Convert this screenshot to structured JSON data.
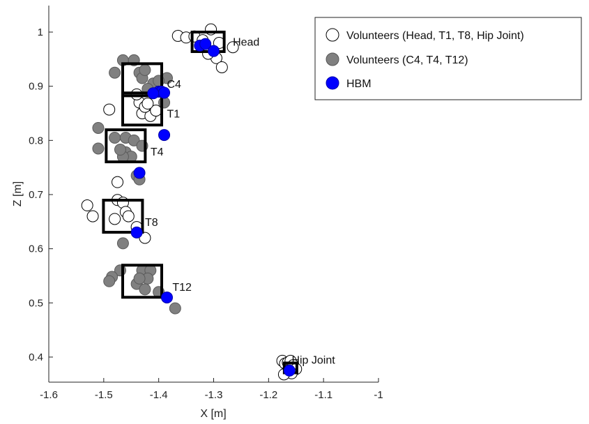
{
  "chart_data": {
    "type": "scatter",
    "title": "",
    "xlabel": "X [m]",
    "ylabel": "Z [m]",
    "xlim": [
      -1.6,
      -1.0
    ],
    "ylim": [
      0.35,
      1.05
    ],
    "xticks": [
      -1.6,
      -1.5,
      -1.4,
      -1.3,
      -1.2,
      -1.1,
      -1
    ],
    "xtick_labels": [
      "-1.6",
      "-1.5",
      "-1.4",
      "-1.3",
      "-1.2",
      "-1.1",
      "-1"
    ],
    "yticks": [
      0.4,
      0.5,
      0.6,
      0.7,
      0.8,
      0.9,
      1
    ],
    "ytick_labels": [
      "0.4",
      "0.5",
      "0.6",
      "0.7",
      "0.8",
      "0.9",
      "1"
    ],
    "grid": false,
    "legend_position": "top-right",
    "series": [
      {
        "name": "Volunteers (Head, T1, T8, Hip Joint)",
        "marker": "open-circle",
        "color": "#ffffff",
        "points": [
          [
            -1.365,
            0.993
          ],
          [
            -1.35,
            0.99
          ],
          [
            -1.335,
            0.992
          ],
          [
            -1.305,
            1.005
          ],
          [
            -1.29,
            0.98
          ],
          [
            -1.265,
            0.972
          ],
          [
            -1.295,
            0.952
          ],
          [
            -1.285,
            0.935
          ],
          [
            -1.32,
            0.985
          ],
          [
            -1.31,
            0.96
          ],
          [
            -1.49,
            0.857
          ],
          [
            -1.435,
            0.87
          ],
          [
            -1.43,
            0.85
          ],
          [
            -1.415,
            0.845
          ],
          [
            -1.405,
            0.855
          ],
          [
            -1.44,
            0.885
          ],
          [
            -1.425,
            0.862
          ],
          [
            -1.42,
            0.868
          ],
          [
            -1.53,
            0.68
          ],
          [
            -1.52,
            0.66
          ],
          [
            -1.48,
            0.655
          ],
          [
            -1.475,
            0.69
          ],
          [
            -1.465,
            0.685
          ],
          [
            -1.46,
            0.668
          ],
          [
            -1.455,
            0.66
          ],
          [
            -1.44,
            0.64
          ],
          [
            -1.425,
            0.62
          ],
          [
            -1.475,
            0.723
          ],
          [
            -1.175,
            0.393
          ],
          [
            -1.17,
            0.388
          ],
          [
            -1.165,
            0.39
          ],
          [
            -1.16,
            0.393
          ],
          [
            -1.155,
            0.385
          ],
          [
            -1.15,
            0.378
          ],
          [
            -1.158,
            0.37
          ],
          [
            -1.165,
            0.375
          ],
          [
            -1.172,
            0.368
          ]
        ]
      },
      {
        "name": "Volunteers (C4, T4, T12)",
        "marker": "filled-circle",
        "color": "#808080",
        "points": [
          [
            -1.465,
            0.948
          ],
          [
            -1.445,
            0.948
          ],
          [
            -1.48,
            0.925
          ],
          [
            -1.435,
            0.925
          ],
          [
            -1.43,
            0.915
          ],
          [
            -1.41,
            0.905
          ],
          [
            -1.42,
            0.895
          ],
          [
            -1.385,
            0.915
          ],
          [
            -1.4,
            0.91
          ],
          [
            -1.39,
            0.87
          ],
          [
            -1.425,
            0.93
          ],
          [
            -1.51,
            0.823
          ],
          [
            -1.48,
            0.805
          ],
          [
            -1.46,
            0.805
          ],
          [
            -1.445,
            0.8
          ],
          [
            -1.43,
            0.79
          ],
          [
            -1.51,
            0.785
          ],
          [
            -1.46,
            0.778
          ],
          [
            -1.45,
            0.77
          ],
          [
            -1.465,
            0.77
          ],
          [
            -1.44,
            0.735
          ],
          [
            -1.435,
            0.728
          ],
          [
            -1.47,
            0.783
          ],
          [
            -1.465,
            0.61
          ],
          [
            -1.47,
            0.56
          ],
          [
            -1.485,
            0.548
          ],
          [
            -1.49,
            0.54
          ],
          [
            -1.44,
            0.535
          ],
          [
            -1.43,
            0.56
          ],
          [
            -1.415,
            0.56
          ],
          [
            -1.42,
            0.545
          ],
          [
            -1.425,
            0.525
          ],
          [
            -1.4,
            0.52
          ],
          [
            -1.37,
            0.49
          ],
          [
            -1.435,
            0.545
          ]
        ]
      },
      {
        "name": "HBM",
        "marker": "filled-circle",
        "color": "#0000ff",
        "points": [
          [
            -1.325,
            0.975
          ],
          [
            -1.315,
            0.978
          ],
          [
            -1.3,
            0.965
          ],
          [
            -1.4,
            0.89
          ],
          [
            -1.395,
            0.89
          ],
          [
            -1.39,
            0.888
          ],
          [
            -1.41,
            0.887
          ],
          [
            -1.39,
            0.81
          ],
          [
            -1.435,
            0.74
          ],
          [
            -1.44,
            0.63
          ],
          [
            -1.385,
            0.51
          ],
          [
            -1.162,
            0.375
          ]
        ]
      }
    ],
    "boxes": [
      {
        "label": "Head",
        "x": -1.31,
        "z": 0.982
      },
      {
        "label": "C4",
        "x": -1.43,
        "z": 0.912
      },
      {
        "label": "T1",
        "x": -1.43,
        "z": 0.858
      },
      {
        "label": "T4",
        "x": -1.46,
        "z": 0.79
      },
      {
        "label": "T8",
        "x": -1.465,
        "z": 0.66
      },
      {
        "label": "T12",
        "x": -1.43,
        "z": 0.54
      },
      {
        "label": "Hip Joint",
        "x": -1.16,
        "z": 0.38
      }
    ],
    "annotations": [
      {
        "text": "Head",
        "x": -1.265,
        "z": 0.975
      },
      {
        "text": "C4",
        "x": -1.385,
        "z": 0.897
      },
      {
        "text": "T1",
        "x": -1.385,
        "z": 0.842
      },
      {
        "text": "T4",
        "x": -1.415,
        "z": 0.772
      },
      {
        "text": "T8",
        "x": -1.425,
        "z": 0.642
      },
      {
        "text": "T12",
        "x": -1.375,
        "z": 0.522
      },
      {
        "text": "Hip Joint",
        "x": -1.158,
        "z": 0.388
      }
    ]
  }
}
